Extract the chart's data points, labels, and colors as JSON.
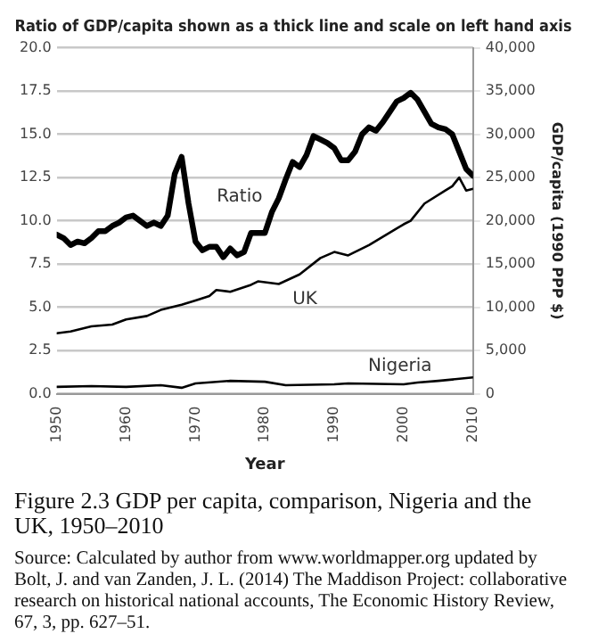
{
  "chart_data": {
    "type": "line",
    "title": "Ratio of GDP/capita shown as a thick line and scale on left hand axis",
    "xlabel": "Year",
    "y2label": "GDP/capita (1990 PPP $)",
    "xlim": [
      1950,
      2010
    ],
    "xticks": [
      1950,
      1960,
      1970,
      1980,
      1990,
      2000,
      2010
    ],
    "ylim": [
      0,
      20
    ],
    "yticks": [
      {
        "value": 0,
        "label": "0.0"
      },
      {
        "value": 2.5,
        "label": "2.5"
      },
      {
        "value": 5,
        "label": "5.0"
      },
      {
        "value": 7.5,
        "label": "7.5"
      },
      {
        "value": 10,
        "label": "10.0"
      },
      {
        "value": 12.5,
        "label": "12.5"
      },
      {
        "value": 15,
        "label": "15.0"
      },
      {
        "value": 17.5,
        "label": "17.5"
      },
      {
        "value": 20,
        "label": "20.0"
      }
    ],
    "y2lim": [
      0,
      40000
    ],
    "y2ticks": [
      {
        "value": 0,
        "label": "0"
      },
      {
        "value": 5000,
        "label": "5,000"
      },
      {
        "value": 10000,
        "label": "10,000"
      },
      {
        "value": 15000,
        "label": "15,000"
      },
      {
        "value": 20000,
        "label": "20,000"
      },
      {
        "value": 25000,
        "label": "25,000"
      },
      {
        "value": 30000,
        "label": "30,000"
      },
      {
        "value": 35000,
        "label": "35,000"
      },
      {
        "value": 40000,
        "label": "40,000"
      }
    ],
    "grid": "y",
    "legend": false,
    "marker": "none",
    "line_style": "solid",
    "series": [
      {
        "name": "Ratio",
        "color": "#000000",
        "x": [
          1950,
          1951,
          1952,
          1953,
          1954,
          1955,
          1956,
          1957,
          1958,
          1959,
          1960,
          1961,
          1962,
          1963,
          1964,
          1965,
          1966,
          1967,
          1968,
          1969,
          1970,
          1971,
          1972,
          1973,
          1974,
          1975,
          1976,
          1977,
          1978,
          1979,
          1980,
          1981,
          1982,
          1983,
          1984,
          1985,
          1986,
          1987,
          1988,
          1989,
          1990,
          1991,
          1992,
          1993,
          1994,
          1995,
          1996,
          1997,
          1998,
          1999,
          2000,
          2001,
          2002,
          2003,
          2004,
          2005,
          2006,
          2007,
          2008,
          2009,
          2010
        ],
        "values": [
          9.2,
          9.0,
          8.6,
          8.8,
          8.7,
          9.0,
          9.4,
          9.4,
          9.7,
          9.9,
          10.2,
          10.3,
          10.0,
          9.7,
          9.9,
          9.7,
          10.3,
          12.7,
          13.7,
          11.0,
          8.8,
          8.3,
          8.5,
          8.5,
          7.9,
          8.4,
          8.0,
          8.2,
          9.3,
          9.3,
          9.3,
          10.5,
          11.3,
          12.4,
          13.4,
          13.1,
          13.8,
          14.9,
          14.7,
          14.5,
          14.2,
          13.5,
          13.5,
          14.0,
          15.0,
          15.4,
          15.2,
          15.7,
          16.3,
          16.9,
          17.1,
          17.4,
          17.0,
          16.3,
          15.6,
          15.4,
          15.3,
          15.0,
          14.0,
          13.0,
          12.6
        ]
      },
      {
        "name": "UK",
        "color": "#000000",
        "axis": "y2",
        "x": [
          1950,
          1952,
          1955,
          1958,
          1960,
          1963,
          1965,
          1968,
          1970,
          1972,
          1973,
          1975,
          1978,
          1979,
          1982,
          1985,
          1988,
          1990,
          1992,
          1995,
          2000,
          2001,
          2003,
          2006,
          2007,
          2008,
          2009,
          2010
        ],
        "values": [
          7000,
          7200,
          7800,
          8000,
          8600,
          9000,
          9700,
          10300,
          10800,
          11300,
          12000,
          11800,
          12600,
          13000,
          12700,
          13800,
          15700,
          16400,
          16000,
          17200,
          19600,
          20000,
          22000,
          23500,
          24000,
          25000,
          23500,
          23700
        ]
      },
      {
        "name": "Nigeria",
        "color": "#000000",
        "axis": "y2",
        "x": [
          1950,
          1955,
          1960,
          1965,
          1968,
          1970,
          1975,
          1980,
          1983,
          1990,
          1992,
          2000,
          2002,
          2005,
          2010
        ],
        "values": [
          800,
          900,
          800,
          1000,
          700,
          1200,
          1500,
          1400,
          1000,
          1100,
          1200,
          1100,
          1300,
          1500,
          1900
        ]
      }
    ],
    "annotations": [
      "Figure 2.3 GDP per capita, comparison, Nigeria and the UK, 1950–2010",
      "Source: Calculated by author from www.worldmapper.org updated by Bolt, J. and van Zanden, J. L. (2014) The Maddison Project: collaborative research on historical national accounts, The Economic History Review, 67, 3, pp. 627–51."
    ]
  }
}
